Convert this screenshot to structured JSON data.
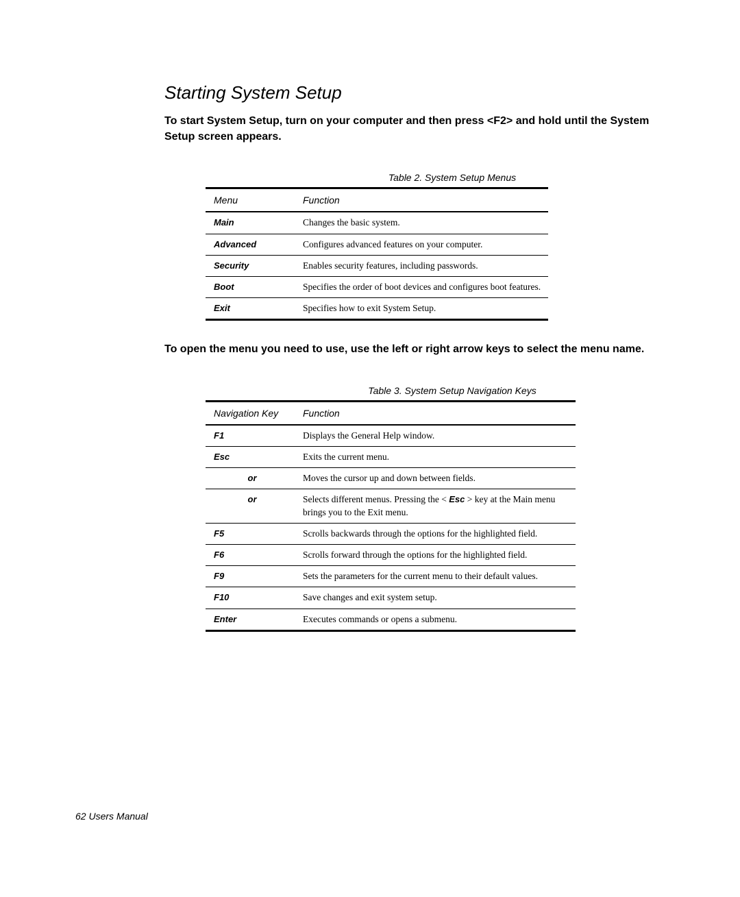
{
  "section_title": "Starting System Setup",
  "intro_line1": "To start System Setup, turn on your computer and then press <F2> and hold until the",
  "intro_line2": "System Setup screen appears.",
  "table2": {
    "caption": "Table 2.  System Setup Menus",
    "col1_header": "Menu",
    "col2_header": "Function",
    "rows": [
      {
        "menu": "Main",
        "func": "Changes the basic system."
      },
      {
        "menu": "Advanced",
        "func": "Configures advanced features on your computer."
      },
      {
        "menu": "Security",
        "func": "Enables security features, including passwords."
      },
      {
        "menu": "Boot",
        "func": "Specifies the order of boot devices and configures boot features."
      },
      {
        "menu": "Exit",
        "func": "Specifies how to exit System Setup."
      }
    ]
  },
  "mid_text": "To open the menu you need to use, use the left or right arrow keys to select the menu name.",
  "table3": {
    "caption": "Table 3.  System Setup Navigation Keys",
    "col1_header": "Navigation Key",
    "col2_header": "Function",
    "rows": {
      "r0_key": "F1",
      "r0_func": "Displays the General Help window.",
      "r1_key": "Esc",
      "r1_func": "Exits the current menu.",
      "r2_key": "or",
      "r2_func": "Moves the cursor up and down between fields.",
      "r3_key": "or",
      "r3_func_a": "Selects different menus. Pressing the <",
      "r3_func_esc": "Esc",
      "r3_func_b": "> key at the Main menu brings you to the Exit menu.",
      "r4_key": "F5",
      "r4_func": "Scrolls backwards through the options for the highlighted field.",
      "r5_key": "F6",
      "r5_func": "Scrolls forward through the options for the highlighted field.",
      "r6_key": "F9",
      "r6_func": "Sets the parameters for the current menu to their default values.",
      "r7_key": "F10",
      "r7_func": "Save changes and exit system setup.",
      "r8_key": "Enter",
      "r8_func": "Executes commands or opens a submenu."
    }
  },
  "footer": "62  Users Manual"
}
